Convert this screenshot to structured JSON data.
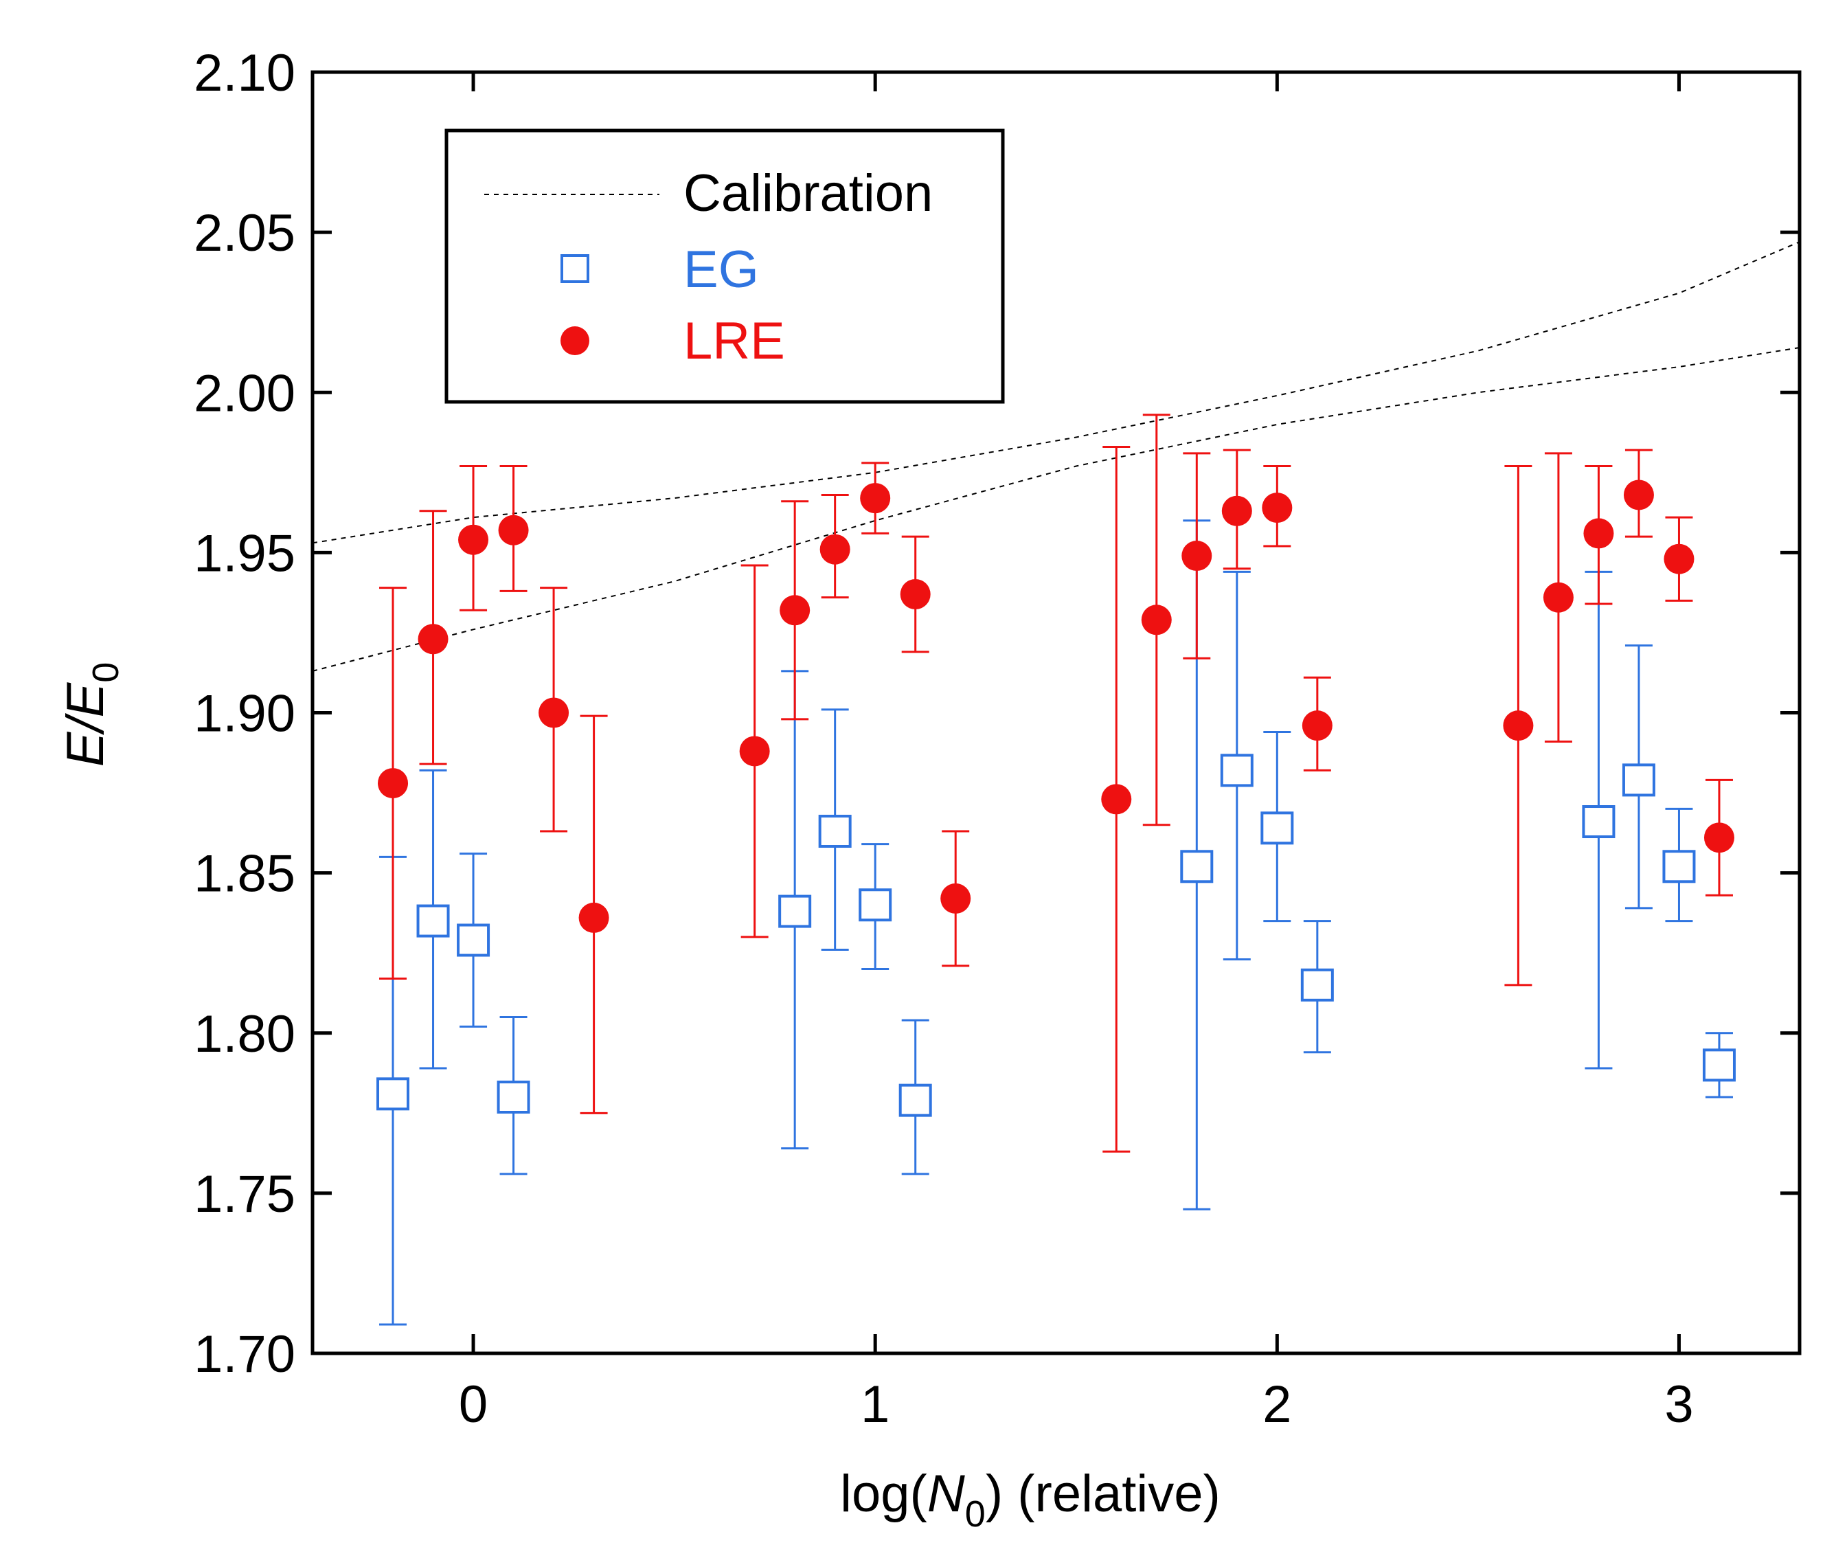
{
  "chart_data": {
    "type": "scatter",
    "title": "",
    "xlabel": {
      "prefix": "log(",
      "italic": "N",
      "sub": "0",
      "suffix": ") (relative)"
    },
    "ylabel": {
      "italic": "E/E",
      "sub": "0"
    },
    "xlim": [
      -0.4,
      3.3
    ],
    "ylim": [
      1.7,
      2.1
    ],
    "xticks": [
      0,
      1,
      2,
      3
    ],
    "xtick_labels": [
      "0",
      "1",
      "2",
      "3"
    ],
    "yticks": [
      1.7,
      1.75,
      1.8,
      1.85,
      1.9,
      1.95,
      2.0,
      2.05,
      2.1
    ],
    "ytick_labels": [
      "1.70",
      "1.75",
      "1.80",
      "1.85",
      "1.90",
      "1.95",
      "2.00",
      "2.05",
      "2.10"
    ],
    "grid": false,
    "legend_position": "top-left",
    "legend": [
      {
        "label": "Calibration",
        "color": "#000000",
        "style": "dotted-line"
      },
      {
        "label": "EG",
        "color": "#2f74e0",
        "style": "open-square"
      },
      {
        "label": "LRE",
        "color": "#ee1111",
        "style": "filled-circle"
      }
    ],
    "calibration": [
      {
        "name": "Calibration upper",
        "x": [
          -0.4,
          0.0,
          0.5,
          1.0,
          1.5,
          2.0,
          2.5,
          3.0,
          3.3
        ],
        "y": [
          1.953,
          1.961,
          1.967,
          1.975,
          1.986,
          1.999,
          2.013,
          2.031,
          2.047
        ]
      },
      {
        "name": "Calibration lower",
        "x": [
          -0.4,
          0.0,
          0.5,
          1.0,
          1.5,
          2.0,
          2.5,
          3.0,
          3.3
        ],
        "y": [
          1.913,
          1.926,
          1.941,
          1.96,
          1.977,
          1.99,
          2.0,
          2.008,
          2.014
        ]
      }
    ],
    "series": [
      {
        "name": "EG",
        "color": "#2f74e0",
        "marker": "open-square",
        "points": [
          {
            "x": -0.2,
            "y": 1.781,
            "ylo": 1.709,
            "yhi": 1.855
          },
          {
            "x": -0.1,
            "y": 1.835,
            "ylo": 1.789,
            "yhi": 1.882
          },
          {
            "x": 0.0,
            "y": 1.829,
            "ylo": 1.802,
            "yhi": 1.856
          },
          {
            "x": 0.1,
            "y": 1.78,
            "ylo": 1.756,
            "yhi": 1.805
          },
          {
            "x": 0.8,
            "y": 1.838,
            "ylo": 1.764,
            "yhi": 1.913
          },
          {
            "x": 0.9,
            "y": 1.863,
            "ylo": 1.826,
            "yhi": 1.901
          },
          {
            "x": 1.0,
            "y": 1.84,
            "ylo": 1.82,
            "yhi": 1.859
          },
          {
            "x": 1.1,
            "y": 1.779,
            "ylo": 1.756,
            "yhi": 1.804
          },
          {
            "x": 1.8,
            "y": 1.852,
            "ylo": 1.745,
            "yhi": 1.96
          },
          {
            "x": 1.9,
            "y": 1.882,
            "ylo": 1.823,
            "yhi": 1.944
          },
          {
            "x": 2.0,
            "y": 1.864,
            "ylo": 1.835,
            "yhi": 1.894
          },
          {
            "x": 2.1,
            "y": 1.815,
            "ylo": 1.794,
            "yhi": 1.835
          },
          {
            "x": 2.8,
            "y": 1.866,
            "ylo": 1.789,
            "yhi": 1.944
          },
          {
            "x": 2.9,
            "y": 1.879,
            "ylo": 1.839,
            "yhi": 1.921
          },
          {
            "x": 3.0,
            "y": 1.852,
            "ylo": 1.835,
            "yhi": 1.87
          },
          {
            "x": 3.1,
            "y": 1.79,
            "ylo": 1.78,
            "yhi": 1.8
          }
        ]
      },
      {
        "name": "LRE",
        "color": "#ee1111",
        "marker": "filled-circle",
        "points": [
          {
            "x": -0.2,
            "y": 1.878,
            "ylo": 1.817,
            "yhi": 1.939
          },
          {
            "x": -0.1,
            "y": 1.923,
            "ylo": 1.884,
            "yhi": 1.963
          },
          {
            "x": 0.0,
            "y": 1.954,
            "ylo": 1.932,
            "yhi": 1.977
          },
          {
            "x": 0.1,
            "y": 1.957,
            "ylo": 1.938,
            "yhi": 1.977
          },
          {
            "x": 0.2,
            "y": 1.9,
            "ylo": 1.863,
            "yhi": 1.939
          },
          {
            "x": 0.3,
            "y": 1.836,
            "ylo": 1.775,
            "yhi": 1.899
          },
          {
            "x": 0.7,
            "y": 1.888,
            "ylo": 1.83,
            "yhi": 1.946
          },
          {
            "x": 0.8,
            "y": 1.932,
            "ylo": 1.898,
            "yhi": 1.966
          },
          {
            "x": 0.9,
            "y": 1.951,
            "ylo": 1.936,
            "yhi": 1.968
          },
          {
            "x": 1.0,
            "y": 1.967,
            "ylo": 1.956,
            "yhi": 1.978
          },
          {
            "x": 1.1,
            "y": 1.937,
            "ylo": 1.919,
            "yhi": 1.955
          },
          {
            "x": 1.2,
            "y": 1.842,
            "ylo": 1.821,
            "yhi": 1.863
          },
          {
            "x": 1.6,
            "y": 1.873,
            "ylo": 1.763,
            "yhi": 1.983
          },
          {
            "x": 1.7,
            "y": 1.929,
            "ylo": 1.865,
            "yhi": 1.993
          },
          {
            "x": 1.8,
            "y": 1.949,
            "ylo": 1.917,
            "yhi": 1.981
          },
          {
            "x": 1.9,
            "y": 1.963,
            "ylo": 1.945,
            "yhi": 1.982
          },
          {
            "x": 2.0,
            "y": 1.964,
            "ylo": 1.952,
            "yhi": 1.977
          },
          {
            "x": 2.1,
            "y": 1.896,
            "ylo": 1.882,
            "yhi": 1.911
          },
          {
            "x": 2.6,
            "y": 1.896,
            "ylo": 1.815,
            "yhi": 1.977
          },
          {
            "x": 2.7,
            "y": 1.936,
            "ylo": 1.891,
            "yhi": 1.981
          },
          {
            "x": 2.8,
            "y": 1.956,
            "ylo": 1.934,
            "yhi": 1.977
          },
          {
            "x": 2.9,
            "y": 1.968,
            "ylo": 1.955,
            "yhi": 1.982
          },
          {
            "x": 3.0,
            "y": 1.948,
            "ylo": 1.935,
            "yhi": 1.961
          },
          {
            "x": 3.1,
            "y": 1.861,
            "ylo": 1.843,
            "yhi": 1.879
          }
        ]
      }
    ]
  }
}
